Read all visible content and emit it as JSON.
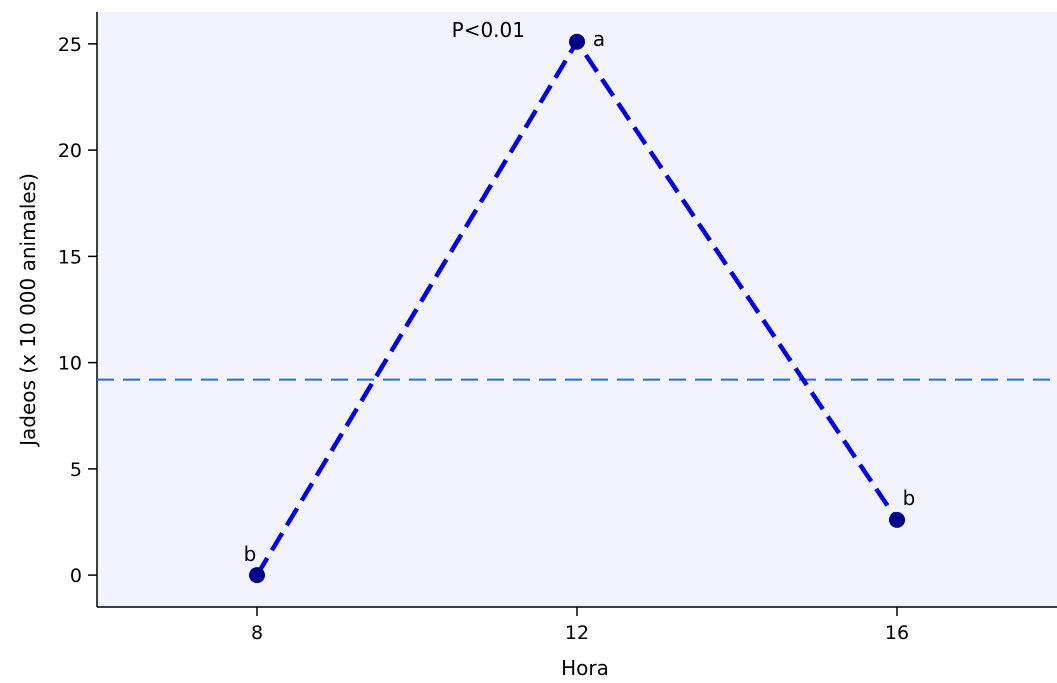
{
  "chart_data": {
    "type": "line",
    "title": "",
    "xlabel": "Hora",
    "ylabel": "Jadeos (x 10 000 animales)",
    "x": [
      8,
      12,
      16
    ],
    "x_tick_labels": [
      "8",
      "12",
      "16"
    ],
    "xlim": [
      6,
      18
    ],
    "ylim": [
      -1.5,
      26.5
    ],
    "y_ticks": [
      0,
      5,
      10,
      15,
      20,
      25
    ],
    "y_tick_labels": [
      "0",
      "5",
      "10",
      "15",
      "20",
      "25"
    ],
    "series": [
      {
        "values": [
          0,
          25.1,
          2.6
        ],
        "point_labels": [
          "b",
          "a",
          "b"
        ],
        "line_style": "dashed",
        "color": "#0000ee",
        "marker_color": "#00008b"
      }
    ],
    "reference_line": {
      "y": 9.2,
      "style": "dashed",
      "color": "#2a6fc9"
    },
    "annotation": {
      "text": "P<0.01"
    },
    "plot_background": "#f3f3fd",
    "grid": false,
    "legend": "none"
  }
}
